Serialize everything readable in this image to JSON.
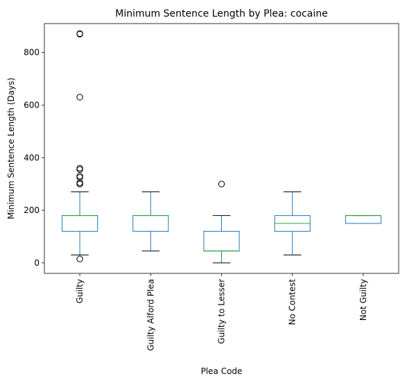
{
  "chart_data": {
    "type": "boxplot",
    "title": "Minimum Sentence Length by Plea: cocaine",
    "xlabel": "Plea Code",
    "ylabel": "Minimum Sentence Length (Days)",
    "ylim": [
      -40,
      910
    ],
    "yticks": [
      0,
      200,
      400,
      600,
      800
    ],
    "ytick_labels": [
      "0",
      "200",
      "400",
      "600",
      "800"
    ],
    "grid": false,
    "colors": {
      "box": "#1f77b4",
      "median": "#2ca02c",
      "whisker": "#000000",
      "flier": "#000000"
    },
    "categories": [
      "Guilty",
      "Guilty Alford Plea",
      "Guilty to Lesser",
      "No Contest",
      "Not Guilty"
    ],
    "boxes": [
      {
        "label": "Guilty",
        "whislo": 30,
        "q1": 120,
        "med": 180,
        "q3": 180,
        "whishi": 270,
        "fliers": [
          15,
          300,
          300,
          305,
          325,
          330,
          355,
          360,
          630,
          870,
          872
        ]
      },
      {
        "label": "Guilty Alford Plea",
        "whislo": 45,
        "q1": 120,
        "med": 180,
        "q3": 180,
        "whishi": 270,
        "fliers": []
      },
      {
        "label": "Guilty to Lesser",
        "whislo": 0,
        "q1": 45,
        "med": 45,
        "q3": 120,
        "whishi": 180,
        "fliers": [
          300
        ]
      },
      {
        "label": "No Contest",
        "whislo": 30,
        "q1": 120,
        "med": 150,
        "q3": 180,
        "whishi": 270,
        "fliers": []
      },
      {
        "label": "Not Guilty",
        "whislo": 150,
        "q1": 150,
        "med": 180,
        "q3": 180,
        "whishi": 180,
        "fliers": []
      }
    ]
  }
}
